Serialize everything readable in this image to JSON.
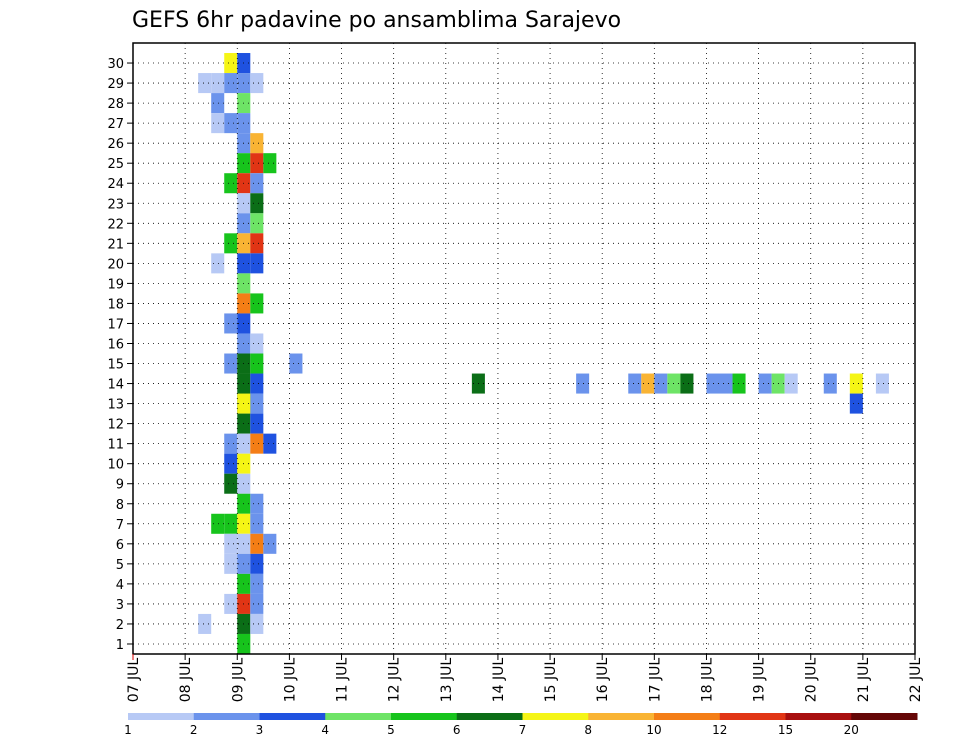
{
  "chart_data": {
    "type": "heatmap",
    "title": "GEFS 6hr padavine po ansamblima Sarajevo",
    "xlabel": "",
    "ylabel": "",
    "x_tick_labels": [
      "07 JUL",
      "08 JUL",
      "09 JUL",
      "10 JUL",
      "11 JUL",
      "12 JUL",
      "13 JUL",
      "14 JUL",
      "15 JUL",
      "16 JUL",
      "17 JUL",
      "18 JUL",
      "19 JUL",
      "20 JUL",
      "21 JUL",
      "22 JUL"
    ],
    "y_tick_labels": [
      "1",
      "2",
      "3",
      "4",
      "5",
      "6",
      "7",
      "8",
      "9",
      "10",
      "11",
      "12",
      "13",
      "14",
      "15",
      "16",
      "17",
      "18",
      "19",
      "20",
      "21",
      "22",
      "23",
      "24",
      "25",
      "26",
      "27",
      "28",
      "29",
      "30"
    ],
    "xlim": [
      0,
      15
    ],
    "ylim": [
      0,
      30
    ],
    "time_step_days": 0.25,
    "grid": "dotted",
    "colorbar": {
      "position": "bottom",
      "labels": [
        "1",
        "2",
        "3",
        "4",
        "5",
        "6",
        "7",
        "8",
        "10",
        "12",
        "15",
        "20"
      ],
      "colors": [
        "#b7c9f5",
        "#6b93ec",
        "#1f52e0",
        "#6ee466",
        "#17c41c",
        "#0b6e17",
        "#f5f516",
        "#f9b434",
        "#f47e16",
        "#e13515",
        "#a80f0f",
        "#650707"
      ]
    },
    "cells": [
      {
        "m": 30,
        "c": [
          [
            1.75,
            6
          ],
          [
            2,
            2
          ]
        ]
      },
      {
        "m": 29,
        "c": [
          [
            1.25,
            0
          ],
          [
            1.5,
            0
          ],
          [
            1.75,
            1
          ],
          [
            2,
            1
          ],
          [
            2.25,
            0
          ]
        ]
      },
      {
        "m": 28,
        "c": [
          [
            1.5,
            1
          ],
          [
            2,
            3
          ]
        ]
      },
      {
        "m": 27,
        "c": [
          [
            1.5,
            0
          ],
          [
            1.75,
            1
          ],
          [
            2,
            1
          ]
        ]
      },
      {
        "m": 26,
        "c": [
          [
            2,
            1
          ],
          [
            2.25,
            7
          ]
        ]
      },
      {
        "m": 25,
        "c": [
          [
            2,
            4
          ],
          [
            2.25,
            9
          ],
          [
            2.5,
            4
          ]
        ]
      },
      {
        "m": 24,
        "c": [
          [
            1.75,
            4
          ],
          [
            2,
            9
          ],
          [
            2.25,
            1
          ]
        ]
      },
      {
        "m": 23,
        "c": [
          [
            2,
            0
          ],
          [
            2.25,
            5
          ]
        ]
      },
      {
        "m": 22,
        "c": [
          [
            2,
            1
          ],
          [
            2.25,
            3
          ]
        ]
      },
      {
        "m": 21,
        "c": [
          [
            1.75,
            4
          ],
          [
            2,
            7
          ],
          [
            2.25,
            9
          ]
        ]
      },
      {
        "m": 20,
        "c": [
          [
            1.5,
            0
          ],
          [
            2,
            2
          ],
          [
            2.25,
            2
          ]
        ]
      },
      {
        "m": 19,
        "c": [
          [
            2,
            3
          ]
        ]
      },
      {
        "m": 18,
        "c": [
          [
            2,
            8
          ],
          [
            2.25,
            4
          ]
        ]
      },
      {
        "m": 17,
        "c": [
          [
            1.75,
            1
          ],
          [
            2,
            2
          ]
        ]
      },
      {
        "m": 16,
        "c": [
          [
            2,
            1
          ],
          [
            2.25,
            0
          ]
        ]
      },
      {
        "m": 15,
        "c": [
          [
            1.75,
            1
          ],
          [
            2,
            5
          ],
          [
            2.25,
            4
          ],
          [
            3,
            1
          ]
        ]
      },
      {
        "m": 14,
        "c": [
          [
            2,
            5
          ],
          [
            2.25,
            2
          ],
          [
            6.5,
            5
          ],
          [
            8.5,
            1
          ],
          [
            9.5,
            1
          ],
          [
            9.75,
            7
          ],
          [
            10,
            1
          ],
          [
            10.25,
            3
          ],
          [
            10.5,
            5
          ],
          [
            11,
            1
          ],
          [
            11.25,
            1
          ],
          [
            11.5,
            4
          ],
          [
            12,
            1
          ],
          [
            12.25,
            3
          ],
          [
            12.5,
            0
          ],
          [
            13.25,
            1
          ],
          [
            13.75,
            6
          ],
          [
            14.25,
            0
          ]
        ]
      },
      {
        "m": 13,
        "c": [
          [
            2,
            5
          ],
          [
            2.25,
            1
          ],
          [
            2,
            6
          ],
          [
            13.75,
            2
          ]
        ]
      },
      {
        "m": 12,
        "c": [
          [
            2,
            5
          ],
          [
            2.25,
            2
          ]
        ]
      },
      {
        "m": 11,
        "c": [
          [
            1.75,
            1
          ],
          [
            2,
            0
          ],
          [
            2.25,
            8
          ],
          [
            2.5,
            2
          ]
        ]
      },
      {
        "m": 10,
        "c": [
          [
            1.75,
            2
          ],
          [
            2,
            6
          ]
        ]
      },
      {
        "m": 9,
        "c": [
          [
            1.75,
            5
          ],
          [
            2,
            0
          ]
        ]
      },
      {
        "m": 8,
        "c": [
          [
            2,
            4
          ],
          [
            2.25,
            1
          ]
        ]
      },
      {
        "m": 7,
        "c": [
          [
            1.5,
            4
          ],
          [
            1.75,
            4
          ],
          [
            2,
            6
          ],
          [
            2.25,
            1
          ]
        ]
      },
      {
        "m": 6,
        "c": [
          [
            1.75,
            0
          ],
          [
            2,
            0
          ],
          [
            2.25,
            8
          ],
          [
            2.5,
            1
          ]
        ]
      },
      {
        "m": 5,
        "c": [
          [
            1.75,
            0
          ],
          [
            2,
            1
          ],
          [
            2.25,
            2
          ]
        ]
      },
      {
        "m": 4,
        "c": [
          [
            2,
            4
          ],
          [
            2.25,
            1
          ]
        ]
      },
      {
        "m": 3,
        "c": [
          [
            1.75,
            0
          ],
          [
            2,
            9
          ],
          [
            2.25,
            1
          ]
        ]
      },
      {
        "m": 2,
        "c": [
          [
            1.25,
            0
          ],
          [
            2,
            5
          ],
          [
            2.25,
            0
          ]
        ]
      },
      {
        "m": 1,
        "c": [
          [
            2,
            4
          ]
        ]
      }
    ],
    "legend": "colorbar at bottom"
  }
}
